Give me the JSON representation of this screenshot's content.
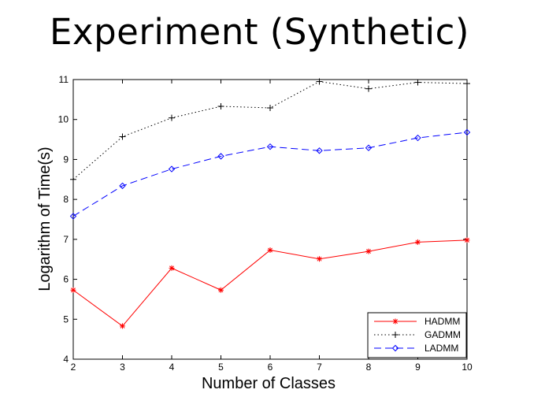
{
  "slide": {
    "title": "Experiment (Synthetic)"
  },
  "chart_data": {
    "type": "line",
    "title": "",
    "xlabel": "Number of Classes",
    "ylabel": "Logarithm of Time(s)",
    "x": [
      2,
      3,
      4,
      5,
      6,
      7,
      8,
      9,
      10
    ],
    "xlim": [
      2,
      10
    ],
    "ylim": [
      4,
      11
    ],
    "xticks": [
      "2",
      "3",
      "4",
      "5",
      "6",
      "7",
      "8",
      "9",
      "10"
    ],
    "yticks": [
      "4",
      "5",
      "6",
      "7",
      "8",
      "9",
      "10",
      "11"
    ],
    "grid": false,
    "legend_position": "bottom-right",
    "series": [
      {
        "name": "HADMM",
        "color": "#ff0000",
        "line_style": "solid",
        "marker": "asterisk",
        "values": [
          5.73,
          4.83,
          6.28,
          5.73,
          6.73,
          6.51,
          6.7,
          6.93,
          6.98
        ]
      },
      {
        "name": "GADMM",
        "color": "#000000",
        "line_style": "dotted",
        "marker": "plus",
        "values": [
          8.5,
          9.57,
          10.04,
          10.33,
          10.29,
          10.95,
          10.77,
          10.93,
          10.9
        ]
      },
      {
        "name": "LADMM",
        "color": "#0000ff",
        "line_style": "dashed",
        "marker": "diamond",
        "values": [
          7.58,
          8.34,
          8.76,
          9.08,
          9.32,
          9.22,
          9.29,
          9.54,
          9.68
        ]
      }
    ]
  }
}
